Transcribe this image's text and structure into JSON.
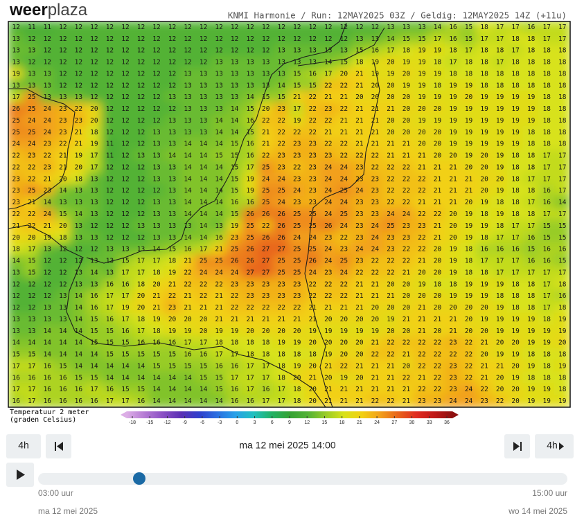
{
  "header": {
    "logo_a": "weer",
    "logo_b": "plaza",
    "run_info": "KNMI Harmonie / Run: 12MAY2025 03Z / Geldig: 12MAY2025 14Z (+11u)"
  },
  "map": {
    "rows": [
      [
        12,
        11,
        11,
        12,
        12,
        12,
        12,
        12,
        12,
        12,
        12,
        12,
        12,
        12,
        12,
        12,
        12,
        12,
        12,
        12,
        12,
        12,
        12,
        12,
        13,
        13,
        13,
        14,
        16,
        15,
        18,
        17,
        17,
        16,
        17,
        17
      ],
      [
        13,
        12,
        12,
        12,
        12,
        12,
        12,
        12,
        12,
        12,
        12,
        12,
        12,
        12,
        12,
        12,
        12,
        12,
        12,
        12,
        12,
        12,
        13,
        13,
        14,
        15,
        15,
        17,
        16,
        15,
        17,
        17,
        18,
        18,
        17,
        17
      ],
      [
        13,
        13,
        12,
        12,
        12,
        12,
        12,
        12,
        12,
        12,
        12,
        12,
        12,
        12,
        12,
        12,
        12,
        13,
        13,
        13,
        13,
        13,
        15,
        16,
        17,
        18,
        19,
        19,
        18,
        17,
        18,
        18,
        17,
        18,
        18,
        18
      ],
      [
        13,
        12,
        12,
        12,
        12,
        12,
        12,
        12,
        12,
        12,
        12,
        12,
        12,
        13,
        13,
        13,
        13,
        13,
        13,
        13,
        14,
        15,
        18,
        19,
        20,
        19,
        19,
        18,
        17,
        18,
        18,
        17,
        18,
        18,
        18,
        18
      ],
      [
        19,
        13,
        13,
        12,
        12,
        12,
        12,
        12,
        12,
        12,
        12,
        13,
        13,
        13,
        13,
        13,
        13,
        13,
        15,
        16,
        17,
        20,
        21,
        19,
        19,
        20,
        19,
        19,
        18,
        18,
        18,
        18,
        18,
        18,
        18,
        18
      ],
      [
        13,
        13,
        13,
        12,
        12,
        12,
        12,
        12,
        12,
        12,
        12,
        13,
        13,
        13,
        13,
        13,
        13,
        14,
        15,
        15,
        22,
        22,
        21,
        20,
        20,
        19,
        19,
        18,
        19,
        19,
        18,
        18,
        18,
        18,
        18,
        18
      ],
      [
        17,
        25,
        13,
        13,
        13,
        12,
        12,
        12,
        12,
        12,
        13,
        13,
        13,
        13,
        13,
        14,
        15,
        15,
        21,
        22,
        21,
        21,
        20,
        20,
        20,
        20,
        19,
        19,
        19,
        20,
        19,
        19,
        19,
        19,
        18,
        18
      ],
      [
        26,
        25,
        24,
        23,
        22,
        20,
        12,
        12,
        12,
        12,
        12,
        13,
        13,
        13,
        14,
        15,
        20,
        23,
        17,
        22,
        23,
        22,
        21,
        21,
        21,
        20,
        20,
        20,
        19,
        19,
        19,
        19,
        19,
        19,
        18,
        18
      ],
      [
        25,
        24,
        24,
        23,
        23,
        20,
        12,
        12,
        12,
        12,
        13,
        13,
        13,
        14,
        14,
        16,
        22,
        22,
        19,
        22,
        22,
        21,
        21,
        21,
        20,
        20,
        19,
        19,
        19,
        19,
        19,
        19,
        19,
        19,
        18,
        18
      ],
      [
        25,
        25,
        24,
        23,
        21,
        18,
        12,
        12,
        12,
        13,
        13,
        13,
        13,
        14,
        14,
        15,
        21,
        22,
        22,
        22,
        21,
        21,
        21,
        21,
        20,
        20,
        20,
        20,
        19,
        19,
        19,
        19,
        19,
        18,
        18,
        18
      ],
      [
        24,
        24,
        23,
        22,
        21,
        19,
        11,
        12,
        12,
        13,
        13,
        14,
        14,
        14,
        15,
        16,
        21,
        22,
        23,
        23,
        22,
        22,
        21,
        21,
        21,
        21,
        20,
        20,
        19,
        19,
        19,
        19,
        19,
        18,
        18,
        18
      ],
      [
        22,
        23,
        22,
        21,
        19,
        17,
        11,
        12,
        13,
        13,
        14,
        14,
        14,
        15,
        15,
        16,
        22,
        23,
        23,
        23,
        23,
        22,
        22,
        22,
        21,
        21,
        21,
        20,
        20,
        19,
        20,
        19,
        18,
        18,
        17,
        17
      ],
      [
        22,
        22,
        23,
        21,
        20,
        17,
        12,
        12,
        12,
        13,
        13,
        14,
        14,
        14,
        15,
        17,
        25,
        23,
        22,
        23,
        24,
        24,
        23,
        22,
        22,
        22,
        21,
        21,
        21,
        20,
        20,
        19,
        18,
        18,
        17,
        17
      ],
      [
        23,
        22,
        21,
        20,
        18,
        13,
        12,
        12,
        12,
        13,
        13,
        14,
        14,
        14,
        15,
        19,
        24,
        24,
        23,
        23,
        24,
        24,
        23,
        23,
        22,
        22,
        22,
        21,
        21,
        21,
        20,
        20,
        18,
        17,
        17,
        17
      ],
      [
        23,
        25,
        23,
        14,
        13,
        13,
        12,
        12,
        12,
        12,
        13,
        14,
        14,
        14,
        15,
        19,
        25,
        25,
        24,
        23,
        24,
        25,
        24,
        23,
        22,
        22,
        22,
        21,
        21,
        21,
        20,
        19,
        18,
        18,
        16,
        17
      ],
      [
        23,
        21,
        14,
        13,
        13,
        13,
        12,
        12,
        12,
        13,
        13,
        14,
        14,
        14,
        16,
        16,
        25,
        24,
        23,
        23,
        24,
        24,
        23,
        23,
        22,
        22,
        21,
        21,
        21,
        20,
        19,
        18,
        18,
        17,
        16,
        14
      ],
      [
        22,
        22,
        24,
        15,
        14,
        13,
        12,
        12,
        12,
        13,
        13,
        14,
        14,
        14,
        15,
        26,
        26,
        26,
        25,
        25,
        24,
        25,
        23,
        23,
        24,
        24,
        22,
        22,
        20,
        19,
        18,
        19,
        18,
        18,
        17,
        17
      ],
      [
        21,
        22,
        21,
        20,
        13,
        12,
        12,
        12,
        13,
        13,
        13,
        13,
        14,
        13,
        19,
        25,
        22,
        26,
        25,
        25,
        26,
        24,
        23,
        24,
        25,
        23,
        23,
        21,
        20,
        19,
        19,
        18,
        17,
        17,
        15,
        15
      ],
      [
        20,
        20,
        19,
        18,
        13,
        13,
        12,
        12,
        12,
        13,
        13,
        14,
        14,
        16,
        23,
        25,
        26,
        26,
        24,
        24,
        23,
        22,
        23,
        24,
        23,
        23,
        22,
        21,
        20,
        19,
        18,
        17,
        17,
        16,
        15,
        15
      ],
      [
        18,
        17,
        13,
        12,
        12,
        12,
        13,
        13,
        13,
        14,
        15,
        16,
        17,
        21,
        25,
        26,
        27,
        27,
        25,
        25,
        24,
        23,
        24,
        24,
        23,
        22,
        22,
        20,
        19,
        18,
        16,
        16,
        16,
        15,
        16,
        16
      ],
      [
        14,
        15,
        12,
        12,
        12,
        13,
        13,
        15,
        17,
        17,
        18,
        21,
        25,
        25,
        26,
        26,
        27,
        25,
        25,
        26,
        24,
        25,
        23,
        22,
        22,
        22,
        21,
        20,
        19,
        18,
        17,
        17,
        17,
        16,
        16,
        15
      ],
      [
        13,
        15,
        12,
        12,
        13,
        14,
        13,
        17,
        17,
        18,
        19,
        22,
        24,
        24,
        24,
        27,
        27,
        25,
        25,
        24,
        23,
        24,
        22,
        22,
        22,
        21,
        20,
        20,
        19,
        18,
        18,
        17,
        17,
        17,
        17,
        17
      ],
      [
        12,
        12,
        12,
        12,
        13,
        13,
        16,
        16,
        18,
        20,
        21,
        22,
        22,
        22,
        23,
        23,
        23,
        23,
        23,
        22,
        22,
        22,
        21,
        21,
        20,
        20,
        19,
        18,
        18,
        19,
        19,
        19,
        18,
        18,
        17,
        18
      ],
      [
        12,
        12,
        12,
        13,
        14,
        16,
        17,
        17,
        20,
        21,
        22,
        21,
        22,
        21,
        22,
        23,
        23,
        23,
        23,
        22,
        22,
        22,
        21,
        21,
        21,
        20,
        20,
        20,
        19,
        19,
        19,
        18,
        18,
        18,
        17,
        16
      ],
      [
        12,
        12,
        13,
        13,
        14,
        16,
        17,
        19,
        20,
        21,
        23,
        21,
        21,
        21,
        22,
        22,
        22,
        22,
        22,
        21,
        21,
        21,
        21,
        20,
        20,
        20,
        21,
        20,
        20,
        20,
        20,
        19,
        18,
        18,
        17,
        18
      ],
      [
        13,
        13,
        13,
        13,
        14,
        15,
        16,
        17,
        18,
        19,
        20,
        20,
        20,
        21,
        21,
        21,
        21,
        21,
        21,
        21,
        20,
        20,
        20,
        20,
        19,
        21,
        21,
        21,
        21,
        20,
        19,
        19,
        19,
        19,
        18,
        19
      ],
      [
        13,
        13,
        14,
        14,
        14,
        15,
        15,
        16,
        17,
        18,
        19,
        19,
        20,
        19,
        19,
        20,
        20,
        20,
        20,
        19,
        19,
        19,
        19,
        19,
        20,
        20,
        21,
        20,
        21,
        20,
        20,
        19,
        19,
        19,
        19,
        19
      ],
      [
        14,
        14,
        14,
        14,
        14,
        15,
        15,
        15,
        16,
        16,
        16,
        17,
        17,
        18,
        18,
        18,
        18,
        19,
        19,
        20,
        20,
        20,
        20,
        21,
        22,
        22,
        22,
        22,
        23,
        22,
        21,
        20,
        20,
        19,
        19,
        20
      ],
      [
        15,
        15,
        14,
        14,
        14,
        14,
        15,
        15,
        15,
        15,
        15,
        16,
        16,
        17,
        17,
        18,
        18,
        18,
        18,
        18,
        19,
        20,
        20,
        22,
        22,
        21,
        22,
        22,
        22,
        22,
        20,
        19,
        19,
        18,
        18,
        18
      ],
      [
        17,
        17,
        16,
        15,
        14,
        14,
        14,
        14,
        14,
        15,
        15,
        15,
        15,
        16,
        16,
        17,
        17,
        18,
        19,
        20,
        21,
        22,
        21,
        21,
        21,
        20,
        22,
        22,
        23,
        22,
        21,
        21,
        20,
        19,
        18,
        19
      ],
      [
        16,
        16,
        16,
        16,
        15,
        15,
        14,
        14,
        14,
        14,
        14,
        14,
        15,
        15,
        17,
        17,
        17,
        18,
        20,
        21,
        20,
        19,
        20,
        21,
        21,
        22,
        21,
        22,
        23,
        22,
        21,
        20,
        19,
        18,
        18,
        18
      ],
      [
        17,
        17,
        16,
        16,
        16,
        17,
        16,
        15,
        15,
        14,
        14,
        14,
        14,
        15,
        16,
        17,
        16,
        17,
        18,
        20,
        21,
        21,
        21,
        21,
        21,
        21,
        22,
        22,
        23,
        24,
        22,
        20,
        20,
        19,
        19,
        18
      ],
      [
        16,
        17,
        16,
        16,
        16,
        16,
        17,
        17,
        16,
        14,
        14,
        14,
        14,
        14,
        16,
        16,
        17,
        17,
        18,
        20,
        21,
        21,
        21,
        22,
        22,
        21,
        23,
        23,
        24,
        24,
        23,
        22,
        20,
        19,
        19,
        19
      ]
    ]
  },
  "legend": {
    "title_1": "Temperatuur 2 meter",
    "title_2": "(graden Celsius)",
    "ticks": [
      -18,
      -15,
      -12,
      -9,
      -6,
      -3,
      0,
      3,
      6,
      9,
      12,
      15,
      18,
      21,
      24,
      27,
      30,
      33,
      36
    ],
    "colors": [
      "#dcaee6",
      "#b47ad4",
      "#8a4fc4",
      "#5a30b4",
      "#2f3ecc",
      "#2b6fe0",
      "#27a0e8",
      "#20c0c0",
      "#22b266",
      "#34a234",
      "#52b236",
      "#98cc26",
      "#d8e21a",
      "#f2d012",
      "#f2a01a",
      "#e8641a",
      "#e02c20",
      "#c01818",
      "#8e1010"
    ]
  },
  "controls": {
    "step_back": "4h",
    "date_time": "ma 12 mei 2025 14:00",
    "step_forward": "4h",
    "start_time": "03:00 uur",
    "end_time": "15:00 uur",
    "start_date": "ma 12 mei 2025",
    "end_date": "wo 14 mei 2025"
  }
}
